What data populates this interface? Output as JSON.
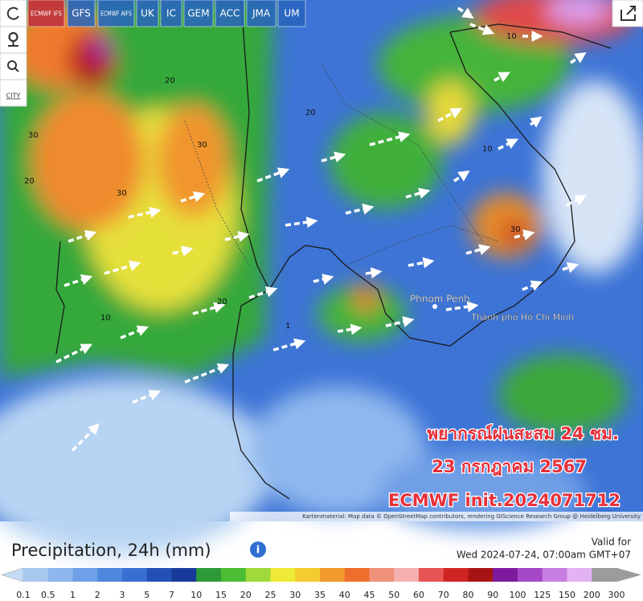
{
  "models": [
    "ECMWF IFS",
    "GFS",
    "ECMWF AIFS",
    "UK",
    "IC",
    "GEM",
    "ACC",
    "JMA",
    "UM"
  ],
  "city_button": "CITY",
  "map_labels": {
    "phnom_penh": "Phnom Penh",
    "ho_chi_minh": "Thành phố Hồ Chí Minh"
  },
  "contour_labels": [
    30,
    20,
    30,
    20,
    30,
    20,
    10,
    10,
    30,
    20,
    1,
    10
  ],
  "overlay": [
    "พยากรณ์ฝนสะสม 24 ชม.",
    "23 กรกฎาคม 2567",
    "ECMWF init.2024071712"
  ],
  "attribution": "Kartenmaterial: Map data © OpenStreetMap contributors, rendering GIScience Research Group @ Heidelberg University",
  "legend": {
    "title": "Precipitation, 24h (mm)",
    "valid_label": "Valid for",
    "valid_time": "Wed 2024-07-24, 07:00am GMT+07",
    "ticks": [
      0.1,
      0.5,
      1,
      2,
      3,
      5,
      7,
      10,
      15,
      20,
      25,
      30,
      35,
      40,
      45,
      50,
      60,
      70,
      80,
      90,
      100,
      125,
      150,
      200,
      300
    ],
    "colors": [
      "#c4dbf4",
      "#a9c8f0",
      "#8db6ec",
      "#6f9fe6",
      "#4f86de",
      "#3a6fd2",
      "#2350b5",
      "#183a9a",
      "#2d9a3a",
      "#4cbd35",
      "#9fd93a",
      "#eeea35",
      "#f4cb30",
      "#f29a2c",
      "#ee6e2c",
      "#f0917a",
      "#f6b0b0",
      "#e85454",
      "#d02424",
      "#a81414",
      "#7e1a9e",
      "#a448c6",
      "#c77ee2",
      "#e3b2f2",
      "#9b9b9b"
    ]
  }
}
